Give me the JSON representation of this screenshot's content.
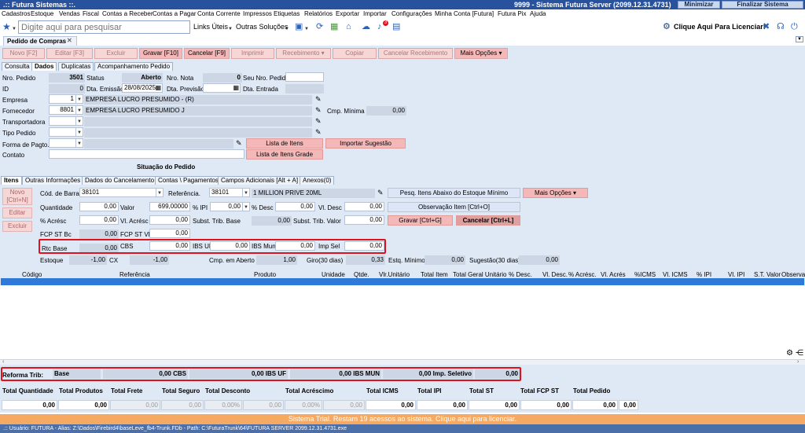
{
  "title": {
    "app": ".:: Futura Sistemas ::.",
    "server": "9999 - Sistema Futura Server (2099.12.31.4731)",
    "minimize": "Minimizar",
    "finish": "Finalizar Sistema"
  },
  "menu": [
    "Cadastros",
    "Estoque",
    "Vendas",
    "Fiscal",
    "Contas a Receber",
    "Contas a Pagar",
    "Conta Corrente",
    "Impressos",
    "Etiquetas",
    "Relatórios",
    "Exportar",
    "Importar",
    "Configurações",
    "Minha Conta [Futura]",
    "Futura Pix",
    "Ajuda"
  ],
  "toolbar": {
    "search_placeholder": "Digite aqui para pesquisar",
    "links": "Links Úteis",
    "solutions": "Outras Soluções",
    "license": "Clique Aqui Para Licenciar!",
    "notif_count": "3"
  },
  "doc_tab": "Pedido de Compras",
  "actions": [
    "Novo [F2]",
    "Editar [F3]",
    "Excluir",
    "Gravar [F10]",
    "Cancelar [F9]",
    "Imprimir",
    "Recebimento",
    "Copiar",
    "Cancelar Recebimento",
    "Mais Opções"
  ],
  "tabs_top": [
    "Consulta",
    "Dados",
    "Duplicatas",
    "Acompanhamento Pedido"
  ],
  "header": {
    "nro_pedido_label": "Nro. Pedido",
    "nro_pedido": "3501",
    "status_label": "Status",
    "status": "Aberto",
    "nro_nota_label": "Nro. Nota",
    "nro_nota": "0",
    "seu_nro_label": "Seu Nro. Pedido",
    "id_label": "ID",
    "id": "0",
    "dta_emissao_label": "Dta. Emissão",
    "dta_emissao": "28/08/2025",
    "dta_previsao_label": "Dta. Previsão",
    "dta_entrada_label": "Dta. Entrada",
    "empresa_label": "Empresa",
    "empresa_code": "1",
    "empresa_name": "EMPRESA LUCRO PRESUMIDO - (R)",
    "fornecedor_label": "Fornecedor",
    "fornecedor_code": "8801",
    "fornecedor_name": "EMPRESA LUCRO PRESUMIDO J",
    "cmp_minima_label": "Cmp. Mínima",
    "cmp_minima": "0,00",
    "transportadora_label": "Transportadora",
    "tipo_pedido_label": "Tipo Pedido",
    "forma_pagto_label": "Forma de Pagto.",
    "contato_label": "Contato",
    "lista_itens": "Lista de Itens",
    "importar_sugestao": "Importar Sugestão",
    "lista_itens_grade": "Lista de Itens Grade",
    "situacao": "Situação do Pedido"
  },
  "tabs_mid": [
    "Itens",
    "Outras Informações",
    "Dados do Cancelamento",
    "Contas \\ Pagamentos",
    "Campos Adicionais [Alt + A]",
    "Anexos(0)"
  ],
  "side_buttons": {
    "novo": "Novo [Ctrl+N]",
    "editar": "Editar",
    "excluir": "Excluir"
  },
  "item": {
    "cod_barras_label": "Cód. de Barras",
    "cod_barras": "38101",
    "referencia_label": "Referência.",
    "referencia": "38101",
    "produto_name": "1 MILLION PRIVE 20ML",
    "quantidade_label": "Quantidade",
    "quantidade": "0,00",
    "valor_label": "Valor",
    "valor": "699,00000",
    "ipi_label": "% IPI",
    "ipi": "0,00",
    "desc_label": "% Desc",
    "desc": "0,00",
    "vl_desc_label": "Vl. Desc",
    "vl_desc": "0,00",
    "acresc_label": "% Acrésc",
    "acresc": "0,00",
    "vl_acresc_label": "Vl. Acrésc",
    "vl_acresc": "0,00",
    "subst_base_label": "Subst. Trib. Base",
    "subst_base": "0,00",
    "subst_valor_label": "Subst. Trib. Valor",
    "subst_valor": "0,00",
    "fcp_bc_label": "FCP ST Bc",
    "fcp_bc": "0,00",
    "fcp_vl_label": "FCP ST Vl",
    "fcp_vl": "0,00",
    "rtc_base_label": "Rtc Base",
    "rtc_base": "0,00",
    "cbs_label": "CBS",
    "cbs": "0,00",
    "ibs_uf_label": "IBS UF",
    "ibs_uf": "0,00",
    "ibs_mun_label": "IBS Mun",
    "ibs_mun": "0,00",
    "imp_sel_label": "Imp Sel",
    "imp_sel": "0,00",
    "estoque_label": "Estoque",
    "estoque": "-1,00",
    "cx_label": "CX",
    "cx": "-1,00",
    "cmp_aberto_label": "Cmp. em Aberto",
    "cmp_aberto": "1,00",
    "giro_label": "Giro(30 dias)",
    "giro": "0,33",
    "estq_minimo_label": "Estq. Mínimo",
    "estq_minimo": "0,00",
    "sugestao_label": "Sugestão(30 dias)",
    "sugestao": "0,00",
    "pesq_itens": "Pesq. Itens Abaixo do Estoque Mínimo",
    "mais_opcoes": "Mais Opções",
    "observacao": "Observação Item [Ctrl+O]",
    "gravar": "Gravar [Ctrl+G]",
    "cancelar": "Cancelar [Ctrl+L]"
  },
  "grid_headers": [
    "Código",
    "Referência",
    "Produto",
    "Unidade",
    "Qtde.",
    "Vlr.Unitário",
    "Total Item",
    "Total Geral Unitário",
    "% Desc.",
    "Vl. Desc.",
    "% Acrésc.",
    "Vl. Acrés",
    "%ICMS",
    "Vl. ICMS",
    "% IPI",
    "Vl. IPI",
    "S.T. Valor",
    "Observação"
  ],
  "reforma": {
    "label": "Reforma Trib:",
    "base_label": "Base",
    "cbs": "0,00 CBS",
    "ibs_uf": "0,00 IBS UF",
    "ibs_mun": "0,00 IBS MUN",
    "imp_sel": "0,00 Imp. Seletivo",
    "total": "0,00"
  },
  "totals": {
    "headers": [
      "Total Quantidade",
      "Total Produtos",
      "Total Frete",
      "Total Seguro",
      "Total Desconto",
      "Total Acréscimo",
      "Total ICMS",
      "Total IPI",
      "Total ST",
      "Total FCP ST",
      "Total Pedido"
    ],
    "values": [
      "0,00",
      "0,00",
      "0,00",
      "0,00",
      "0,00%",
      "0,00",
      "0,00%",
      "0,00",
      "0,00",
      "0,00",
      "0,00",
      "0,00",
      "0,00",
      "0,00"
    ]
  },
  "trial": "Sistema Trial. Restam 19 acessos ao sistema. Clique aqui para licenciar.",
  "status": ".:: Usuário: FUTURA - Alias: Z:\\Dados\\Firebird4\\baseLeve_fb4-Trunk.FDb - Path: C:\\FuturaTrunk\\64\\FUTURA SERVER 2099.12.31.4731.exe"
}
